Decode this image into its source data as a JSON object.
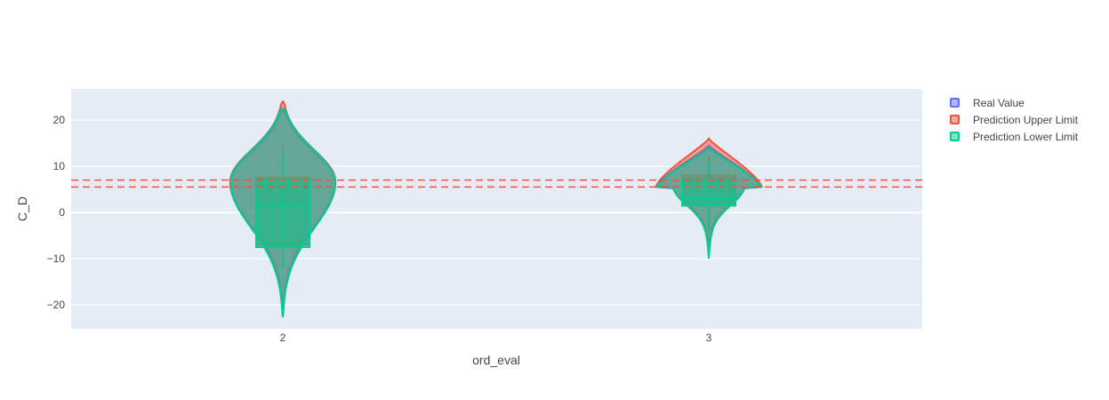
{
  "chart_data": {
    "type": "violin",
    "title": "",
    "xlabel": "ord_eval",
    "ylabel": "C_D",
    "categories": [
      "2",
      "3"
    ],
    "ylim": [
      -25,
      25
    ],
    "yticks": [
      -20,
      -10,
      0,
      10,
      20
    ],
    "yticklabels": [
      "−20",
      "−10",
      "0",
      "10",
      "20"
    ],
    "reference_lines": [
      7.0,
      5.5
    ],
    "reference_line_color": "#ef553b",
    "series": [
      {
        "name": "Real Value",
        "color": "#636efa",
        "stats": {
          "2": {
            "min": -21,
            "q1": -7,
            "median": 2,
            "q3": 7,
            "max": 22,
            "whisker_low": -12,
            "whisker_high": 14
          },
          "3": {
            "min": -9.5,
            "q1": 1.5,
            "median": 3,
            "q3": 7.5,
            "max": 14.5,
            "whisker_low": -4,
            "whisker_high": 12
          }
        }
      },
      {
        "name": "Prediction Upper Limit",
        "color": "#ef553b",
        "stats": {
          "2": {
            "min": -20.5,
            "q1": -7,
            "median": 2,
            "q3": 7.5,
            "max": 24,
            "whisker_low": -12,
            "whisker_high": 14
          },
          "3": {
            "min": -9,
            "q1": 1.5,
            "median": 3,
            "q3": 8,
            "max": 16,
            "whisker_low": -4,
            "whisker_high": 12
          }
        }
      },
      {
        "name": "Prediction Lower Limit",
        "color": "#00cc96",
        "stats": {
          "2": {
            "min": -22.5,
            "q1": -7.5,
            "median": 1.5,
            "q3": 7,
            "max": 22.5,
            "whisker_low": -12,
            "whisker_high": 13
          },
          "3": {
            "min": -10,
            "q1": 1.5,
            "median": 3,
            "q3": 7,
            "max": 14,
            "whisker_low": -4,
            "whisker_high": 11
          }
        }
      }
    ]
  }
}
